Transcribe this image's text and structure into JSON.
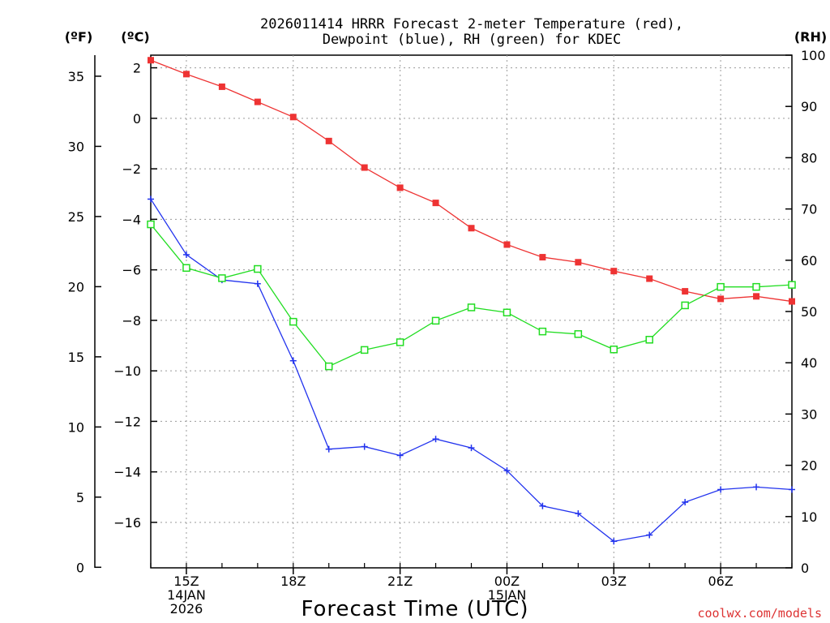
{
  "chart_data": {
    "type": "line",
    "title_line1": "2026011414 HRRR Forecast 2-meter Temperature (red),",
    "title_line2": "Dewpoint (blue), RH (green) for KDEC",
    "xlabel": "Forecast Time (UTC)",
    "credit": "coolwx.com/models",
    "units": {
      "fahrenheit": "(ºF)",
      "celsius": "(ºC)",
      "rh": "(RH)"
    },
    "x_hours": [
      14,
      15,
      16,
      17,
      18,
      19,
      20,
      21,
      22,
      23,
      24,
      25,
      26,
      27,
      28,
      29,
      30,
      31,
      32
    ],
    "x_ticks": [
      {
        "hour": 15,
        "labels": [
          "15Z",
          "14JAN",
          "2026"
        ]
      },
      {
        "hour": 18,
        "labels": [
          "18Z"
        ]
      },
      {
        "hour": 21,
        "labels": [
          "21Z"
        ]
      },
      {
        "hour": 24,
        "labels": [
          "00Z",
          "15JAN"
        ]
      },
      {
        "hour": 27,
        "labels": [
          "03Z"
        ]
      },
      {
        "hour": 30,
        "labels": [
          "06Z"
        ]
      }
    ],
    "xlim": [
      14,
      32
    ],
    "celsius_axis": {
      "ylim": [
        -17.8,
        2.5
      ],
      "ticks": [
        2,
        0,
        -2,
        -4,
        -6,
        -8,
        -10,
        -12,
        -14,
        -16
      ],
      "tick_labels": [
        "2",
        "0",
        "−2",
        "−4",
        "−6",
        "−8",
        "−10",
        "−12",
        "−14",
        "−16"
      ]
    },
    "fahrenheit_axis": {
      "ticks": [
        35,
        30,
        25,
        20,
        15,
        10,
        5,
        0
      ],
      "tick_labels": [
        "35",
        "30",
        "25",
        "20",
        "15",
        "10",
        "5",
        "0"
      ]
    },
    "rh_axis": {
      "ylim": [
        0,
        100
      ],
      "ticks": [
        100,
        90,
        80,
        70,
        60,
        50,
        40,
        30,
        20,
        10,
        0
      ],
      "tick_labels": [
        "100",
        "90",
        "80",
        "70",
        "60",
        "50",
        "40",
        "30",
        "20",
        "10",
        "0"
      ]
    },
    "series": [
      {
        "name": "2-meter Temperature",
        "axis": "celsius",
        "color": "#ee3333",
        "marker": "filled-square",
        "values": [
          2.3,
          1.75,
          1.25,
          0.65,
          0.05,
          -0.9,
          -1.95,
          -2.75,
          -3.35,
          -4.35,
          -5.0,
          -5.5,
          -5.7,
          -6.05,
          -6.35,
          -6.85,
          -7.15,
          -7.05,
          -7.25
        ]
      },
      {
        "name": "Dewpoint",
        "axis": "celsius",
        "color": "#2233ee",
        "marker": "plus",
        "values": [
          -3.2,
          -5.4,
          -6.4,
          -6.55,
          -9.6,
          -13.1,
          -13.0,
          -13.35,
          -12.7,
          -13.05,
          -13.95,
          -15.35,
          -15.65,
          -16.75,
          -16.5,
          -15.2,
          -14.7,
          -14.6,
          -14.7
        ]
      },
      {
        "name": "RH",
        "axis": "rh",
        "color": "#22dd22",
        "marker": "open-square",
        "values": [
          67,
          58.5,
          56.5,
          58.3,
          48.0,
          39.3,
          42.5,
          44.0,
          48.2,
          50.8,
          49.8,
          46.1,
          45.6,
          42.6,
          44.5,
          51.2,
          54.8,
          54.8,
          55.2
        ]
      }
    ]
  }
}
